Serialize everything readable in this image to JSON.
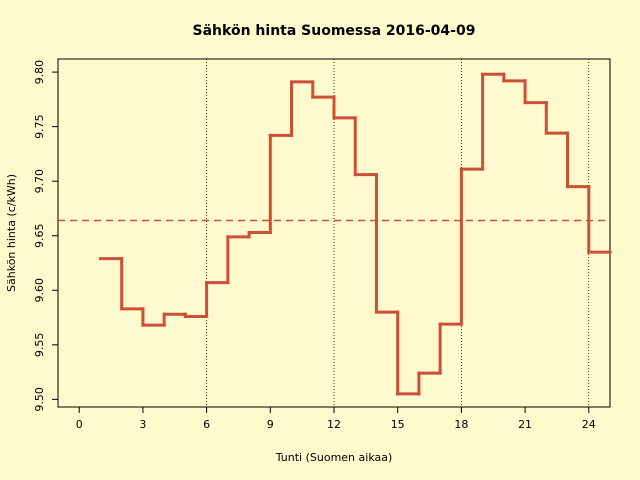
{
  "chart_data": {
    "type": "step",
    "title": "Sähkön hinta Suomessa 2016-04-09",
    "x_label": "Tunti (Suomen aikaa)",
    "y_label": "Sähkön hinta (c/kWh)",
    "x": [
      1,
      2,
      3,
      4,
      5,
      6,
      7,
      8,
      9,
      10,
      11,
      12,
      13,
      14,
      15,
      16,
      17,
      18,
      19,
      20,
      21,
      22,
      23,
      24
    ],
    "values": [
      9.629,
      9.583,
      9.568,
      9.578,
      9.576,
      9.607,
      9.649,
      9.653,
      9.742,
      9.791,
      9.777,
      9.758,
      9.706,
      9.58,
      9.505,
      9.524,
      9.569,
      9.711,
      9.798,
      9.792,
      9.772,
      9.744,
      9.695,
      9.635
    ],
    "color": "#cd4f39",
    "mean": 9.664,
    "mean_color": "#cd4f39",
    "vlines": [
      6,
      12,
      18,
      24
    ],
    "xlim": [
      -1,
      25
    ],
    "ylim": [
      9.493,
      9.812
    ],
    "xticks": [
      0,
      3,
      6,
      9,
      12,
      15,
      18,
      21,
      24
    ],
    "yticks": [
      {
        "value": 9.5,
        "label": "9.50"
      },
      {
        "value": 9.55,
        "label": "9.55"
      },
      {
        "value": 9.6,
        "label": "9.60"
      },
      {
        "value": 9.65,
        "label": "9.65"
      },
      {
        "value": 9.7,
        "label": "9.70"
      },
      {
        "value": 9.75,
        "label": "9.75"
      },
      {
        "value": 9.8,
        "label": "9.80"
      }
    ]
  }
}
